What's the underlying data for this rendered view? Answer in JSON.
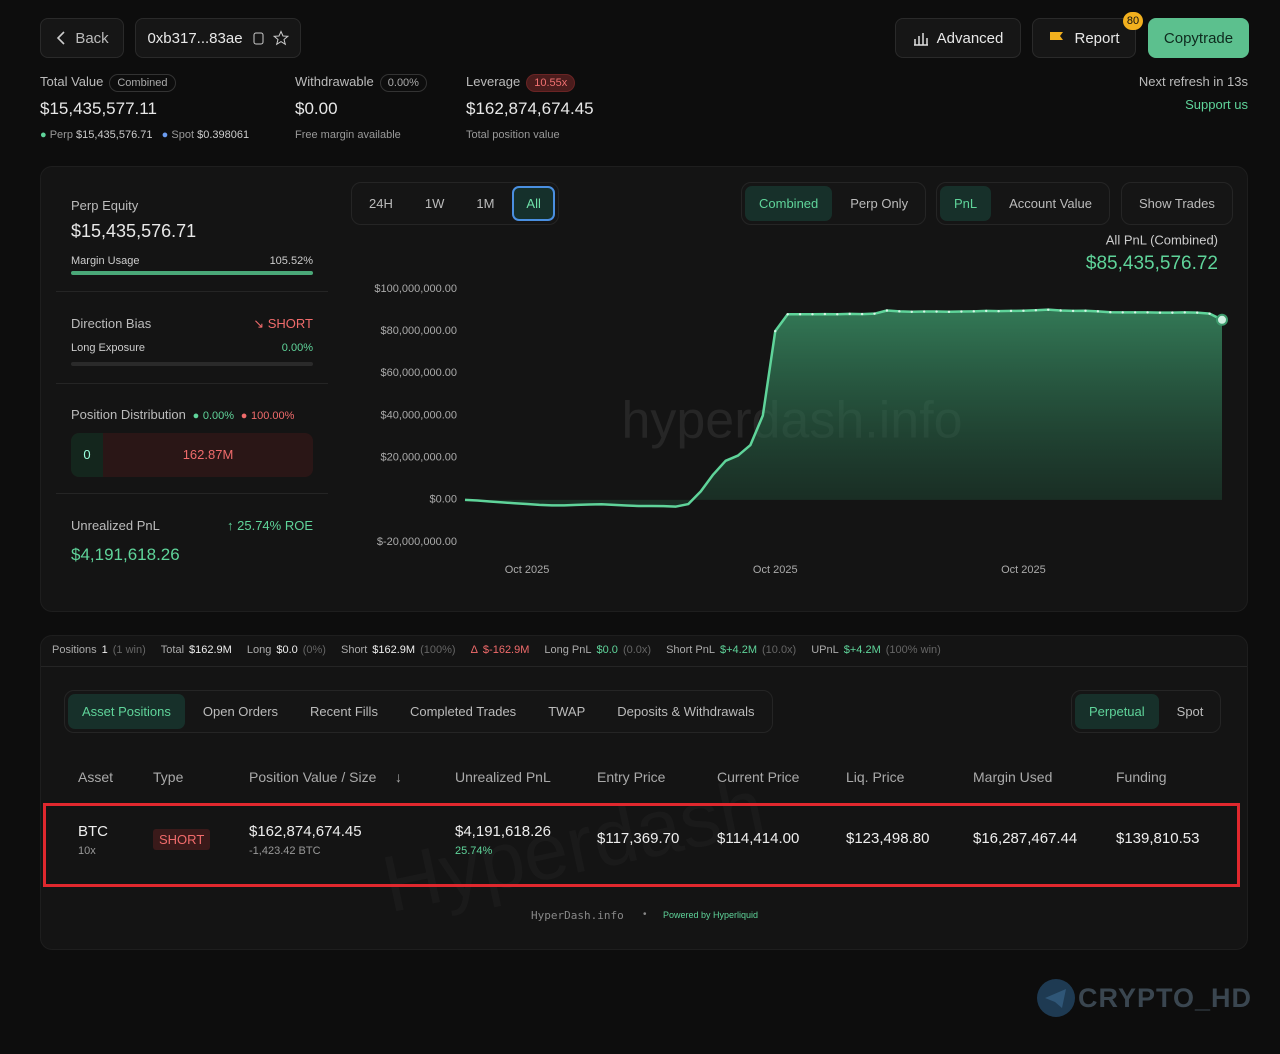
{
  "header": {
    "back": "Back",
    "address": "0xb317...83ae",
    "advanced": "Advanced",
    "report": "Report",
    "report_badge": "80",
    "copytrade": "Copytrade"
  },
  "summary": {
    "total_label": "Total Value",
    "total_tag": "Combined",
    "total_value": "$15,435,577.11",
    "perp_label": "Perp",
    "perp_value": "$15,435,576.71",
    "spot_label": "Spot",
    "spot_value": "$0.398061",
    "withdrawable_label": "Withdrawable",
    "withdrawable_tag": "0.00%",
    "withdrawable_value": "$0.00",
    "withdrawable_note": "Free margin available",
    "leverage_label": "Leverage",
    "leverage_tag": "10.55x",
    "leverage_value": "$162,874,674.45",
    "leverage_note": "Total position value",
    "refresh": "Next refresh in 13s",
    "support": "Support us"
  },
  "side_panel": {
    "equity_label": "Perp Equity",
    "equity_value": "$15,435,576.71",
    "margin_label": "Margin Usage",
    "margin_value": "105.52%",
    "bias_label": "Direction Bias",
    "bias_value": "SHORT",
    "long_exposure_label": "Long Exposure",
    "long_exposure_value": "0.00%",
    "distribution_label": "Position Distribution",
    "distribution_long_pct": "0.00%",
    "distribution_short_pct": "100.00%",
    "distribution_long": "0",
    "distribution_short": "162.87M",
    "upnl_label": "Unrealized PnL",
    "upnl_roe": "25.74% ROE",
    "upnl_value": "$4,191,618.26"
  },
  "chart_controls": {
    "ranges": [
      "24H",
      "1W",
      "1M",
      "All"
    ],
    "modes": [
      "Combined",
      "Perp Only"
    ],
    "metrics": [
      "PnL",
      "Account Value"
    ],
    "show_trades": "Show Trades"
  },
  "chart_data": {
    "type": "area",
    "headline_label": "All PnL (Combined)",
    "headline_value": "$85,435,576.72",
    "watermark": "hyperdash.info",
    "color": "#5fd49a",
    "categories": [
      null,
      null,
      null,
      null,
      null,
      "Oct 2025",
      null,
      null,
      null,
      null,
      null,
      null,
      null,
      null,
      null,
      null,
      null,
      null,
      null,
      null,
      null,
      null,
      null,
      null,
      null,
      "Oct 2025",
      null,
      null,
      null,
      null,
      null,
      null,
      null,
      null,
      null,
      null,
      null,
      null,
      null,
      null,
      null,
      null,
      null,
      null,
      null,
      "Oct 2025",
      null,
      null,
      null,
      null,
      null,
      null,
      null,
      null,
      null,
      null,
      null,
      null,
      null,
      null,
      null,
      null
    ],
    "values": [
      0,
      -300000,
      -800000,
      -1200000,
      -1600000,
      -2000000,
      -2400000,
      -2600000,
      -2600000,
      -2400000,
      -2200000,
      -2100000,
      -2400000,
      -2700000,
      -2900000,
      -2900000,
      -3000000,
      -3200000,
      -2000000,
      4000000,
      12000000,
      18500000,
      21000000,
      26000000,
      40000000,
      80000000,
      88000000,
      88000000,
      88000000,
      88100000,
      88000000,
      88200000,
      88100000,
      88300000,
      89800000,
      89400000,
      89200000,
      89300000,
      89300000,
      89200000,
      89300000,
      89400000,
      89600000,
      89500000,
      89600000,
      89700000,
      89900000,
      90200000,
      89800000,
      89600000,
      89700000,
      89400000,
      89000000,
      88900000,
      88900000,
      88900000,
      88800000,
      88800000,
      88900000,
      88800000,
      88300000,
      85400000
    ],
    "ylim": [
      -20000000,
      100000000
    ],
    "yticks": [
      {
        "value": 100000000,
        "label": "$100,000,000.00"
      },
      {
        "value": 80000000,
        "label": "$80,000,000.00"
      },
      {
        "value": 60000000,
        "label": "$60,000,000.00"
      },
      {
        "value": 40000000,
        "label": "$40,000,000.00"
      },
      {
        "value": 20000000,
        "label": "$20,000,000.00"
      },
      {
        "value": 0,
        "label": "$0.00"
      },
      {
        "value": -20000000,
        "label": "$-20,000,000.00"
      }
    ]
  },
  "stats": [
    {
      "label": "Positions",
      "value": "1",
      "note": "(1 win)"
    },
    {
      "label": "Total",
      "value": "$162.9M"
    },
    {
      "label": "Long",
      "value": "$0.0",
      "note": "(0%)"
    },
    {
      "label": "Short",
      "value": "$162.9M",
      "note": "(100%)"
    },
    {
      "label": "Δ",
      "value": "$-162.9M"
    },
    {
      "label": "Long PnL",
      "value": "$0.0",
      "note": "(0.0x)"
    },
    {
      "label": "Short PnL",
      "value": "$+4.2M",
      "note": "(10.0x)"
    },
    {
      "label": "UPnL",
      "value": "$+4.2M",
      "note": "(100% win)"
    }
  ],
  "tabs": [
    "Asset Positions",
    "Open Orders",
    "Recent Fills",
    "Completed Trades",
    "TWAP",
    "Deposits & Withdrawals"
  ],
  "market_tabs": [
    "Perpetual",
    "Spot"
  ],
  "table": {
    "headers": [
      "Asset",
      "Type",
      "Position Value / Size",
      "Unrealized PnL",
      "Entry Price",
      "Current Price",
      "Liq. Price",
      "Margin Used",
      "Funding"
    ],
    "row": {
      "asset": "BTC",
      "leverage": "10x",
      "type": "SHORT",
      "position_value": "$162,874,674.45",
      "size": "-1,423.42 BTC",
      "upnl": "$4,191,618.26",
      "upnl_pct": "25.74%",
      "entry": "$117,369.70",
      "current": "$114,414.00",
      "liq": "$123,498.80",
      "margin": "$16,287,467.44",
      "funding": "$139,810.53"
    }
  },
  "footer": {
    "site": "HyperDash.info",
    "separator": "•",
    "powered": "Powered by Hyperliquid"
  },
  "watermark": "CRYPTO_HD"
}
